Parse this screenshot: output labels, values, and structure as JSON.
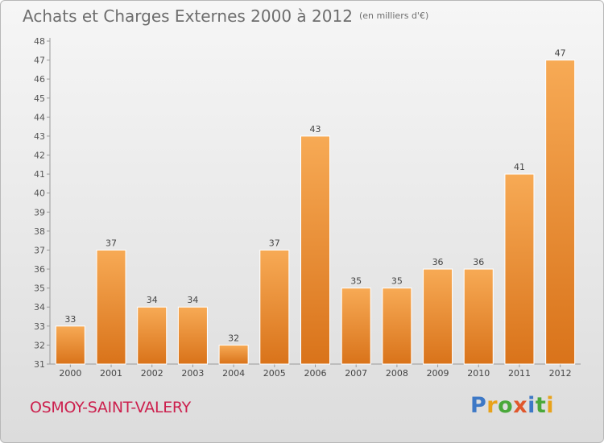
{
  "title": "Achats et Charges Externes 2000 à 2012",
  "unit_note": "(en milliers d'€)",
  "commune": "OSMOY-SAINT-VALERY",
  "logo": "Proxiti",
  "colors": {
    "bar": "#f0902e",
    "bar_light": "#f7aa55",
    "bar_dark": "#d9731a",
    "commune_text": "#cc1f4d",
    "title_text": "#6e6e6e"
  },
  "chart_data": {
    "type": "bar",
    "title": "Achats et Charges Externes 2000 à 2012",
    "categories": [
      "2000",
      "2001",
      "2002",
      "2003",
      "2004",
      "2005",
      "2006",
      "2007",
      "2008",
      "2009",
      "2010",
      "2011",
      "2012"
    ],
    "values": [
      33,
      37,
      34,
      34,
      32,
      37,
      43,
      35,
      35,
      36,
      36,
      41,
      47
    ],
    "ylim": [
      31,
      48
    ],
    "yticks": [
      31,
      32,
      33,
      34,
      35,
      36,
      37,
      38,
      39,
      40,
      41,
      42,
      43,
      44,
      45,
      46,
      47,
      48
    ],
    "grid": false,
    "data_labels": true
  }
}
